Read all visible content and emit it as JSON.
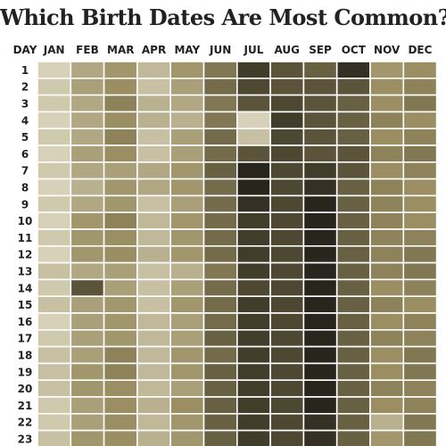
{
  "chart_data": {
    "type": "heatmap",
    "title": "Which Birth Dates Are Most Common?",
    "corner_label": "DAY",
    "columns": [
      "JAN",
      "FEB",
      "MAR",
      "APR",
      "MAY",
      "JUN",
      "JUL",
      "AUG",
      "SEP",
      "OCT",
      "NOV",
      "DEC"
    ],
    "rows": [
      "1",
      "2",
      "3",
      "4",
      "5",
      "6",
      "7",
      "8",
      "9",
      "10",
      "11",
      "12",
      "13",
      "14",
      "15",
      "16",
      "17",
      "18",
      "19",
      "20",
      "21",
      "22",
      "23"
    ],
    "color_scale": {
      "low": "#E6E2CF",
      "mid": "#9A8E62",
      "high": "#1B1A14"
    },
    "values": [
      [
        0.1,
        0.35,
        0.45,
        0.25,
        0.45,
        0.6,
        0.85,
        0.75,
        0.7,
        0.9,
        0.45,
        0.5
      ],
      [
        0.15,
        0.4,
        0.5,
        0.2,
        0.4,
        0.65,
        0.8,
        0.75,
        0.75,
        0.75,
        0.5,
        0.55
      ],
      [
        0.15,
        0.35,
        0.55,
        0.3,
        0.35,
        0.6,
        0.75,
        0.8,
        0.75,
        0.7,
        0.5,
        0.6
      ],
      [
        0.1,
        0.35,
        0.5,
        0.3,
        0.3,
        0.6,
        0.1,
        0.85,
        0.75,
        0.7,
        0.55,
        0.5
      ],
      [
        0.15,
        0.35,
        0.55,
        0.2,
        0.4,
        0.65,
        0.2,
        0.8,
        0.75,
        0.7,
        0.5,
        0.55
      ],
      [
        0.1,
        0.4,
        0.5,
        0.2,
        0.4,
        0.65,
        0.75,
        0.8,
        0.75,
        0.75,
        0.55,
        0.6
      ],
      [
        0.15,
        0.35,
        0.4,
        0.35,
        0.45,
        0.7,
        0.95,
        0.8,
        0.85,
        0.75,
        0.5,
        0.55
      ],
      [
        0.1,
        0.3,
        0.45,
        0.35,
        0.45,
        0.65,
        0.95,
        0.8,
        0.9,
        0.7,
        0.55,
        0.5
      ],
      [
        0.15,
        0.35,
        0.45,
        0.2,
        0.4,
        0.65,
        0.9,
        0.8,
        0.95,
        0.7,
        0.55,
        0.5
      ],
      [
        0.1,
        0.45,
        0.55,
        0.25,
        0.45,
        0.65,
        0.85,
        0.8,
        0.95,
        0.7,
        0.55,
        0.5
      ],
      [
        0.15,
        0.45,
        0.5,
        0.25,
        0.45,
        0.65,
        0.85,
        0.8,
        0.95,
        0.7,
        0.55,
        0.55
      ],
      [
        0.1,
        0.45,
        0.5,
        0.3,
        0.45,
        0.65,
        0.85,
        0.8,
        0.95,
        0.7,
        0.55,
        0.6
      ],
      [
        0.2,
        0.35,
        0.4,
        0.2,
        0.3,
        0.6,
        0.85,
        0.8,
        0.95,
        0.7,
        0.55,
        0.6
      ],
      [
        0.15,
        0.75,
        0.4,
        0.2,
        0.4,
        0.65,
        0.8,
        0.8,
        0.95,
        0.7,
        0.5,
        0.55
      ],
      [
        0.2,
        0.4,
        0.45,
        0.2,
        0.45,
        0.65,
        0.85,
        0.8,
        0.95,
        0.7,
        0.55,
        0.5
      ],
      [
        0.1,
        0.4,
        0.45,
        0.25,
        0.4,
        0.65,
        0.85,
        0.8,
        0.95,
        0.7,
        0.5,
        0.55
      ],
      [
        0.15,
        0.4,
        0.45,
        0.25,
        0.4,
        0.7,
        0.85,
        0.8,
        0.95,
        0.7,
        0.55,
        0.55
      ],
      [
        0.2,
        0.4,
        0.55,
        0.25,
        0.45,
        0.65,
        0.85,
        0.8,
        0.95,
        0.7,
        0.5,
        0.6
      ],
      [
        0.2,
        0.45,
        0.55,
        0.25,
        0.45,
        0.7,
        0.85,
        0.8,
        0.95,
        0.7,
        0.5,
        0.6
      ],
      [
        0.2,
        0.45,
        0.5,
        0.25,
        0.4,
        0.7,
        0.85,
        0.8,
        0.95,
        0.7,
        0.55,
        0.55
      ],
      [
        0.15,
        0.4,
        0.5,
        0.3,
        0.5,
        0.7,
        0.85,
        0.8,
        0.95,
        0.7,
        0.5,
        0.55
      ],
      [
        0.15,
        0.4,
        0.5,
        0.25,
        0.45,
        0.7,
        0.85,
        0.8,
        0.9,
        0.7,
        0.3,
        0.6
      ],
      [
        0.2,
        0.45,
        0.5,
        0.3,
        0.45,
        0.7,
        0.85,
        0.8,
        0.9,
        0.7,
        0.45,
        0.6
      ]
    ]
  }
}
